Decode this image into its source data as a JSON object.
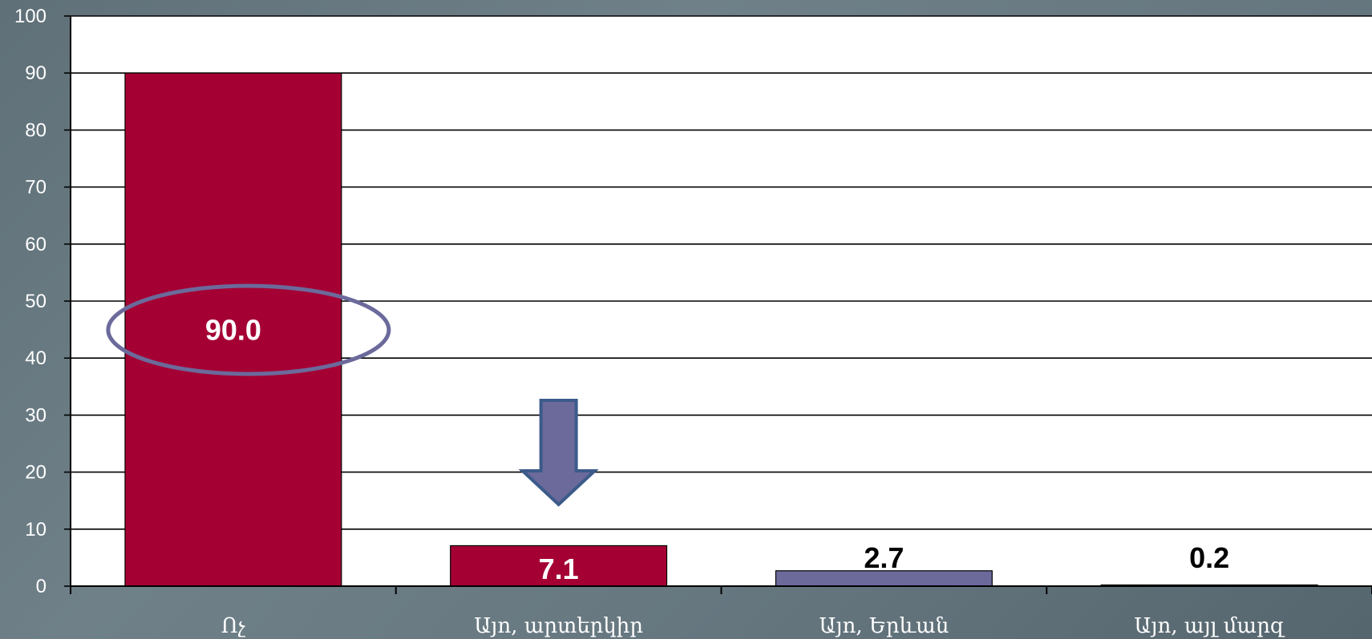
{
  "chart_data": {
    "type": "bar",
    "categories": [
      "Ոչ",
      "Այո, արտերկիր",
      "Այո, Երևան",
      "Այո, այլ մարզ"
    ],
    "values": [
      90.0,
      7.1,
      2.7,
      0.2
    ],
    "value_labels": [
      "90.0",
      "7.1",
      "2.7",
      "0.2"
    ],
    "ylim": [
      0,
      100
    ],
    "yticks": [
      0,
      10,
      20,
      30,
      40,
      50,
      60,
      70,
      80,
      90,
      100
    ],
    "grid": true,
    "legend": "none",
    "bar_colors": [
      "#a50034",
      "#a50034",
      "#6b6a9b",
      "#1a1a1a"
    ],
    "label_colors": [
      "#ffffff",
      "#ffffff",
      "#000000",
      "#000000"
    ],
    "annotations": {
      "highlight_ellipse": {
        "category_index": 0,
        "color": "#6b6a9b"
      },
      "down_arrow": {
        "category_index": 1,
        "fill": "#6b6a9b",
        "stroke": "#3b5b8a"
      }
    }
  },
  "colors": {
    "plot_background": "#ffffff",
    "gridline": "#000000",
    "axis_text": "#ffffff"
  }
}
